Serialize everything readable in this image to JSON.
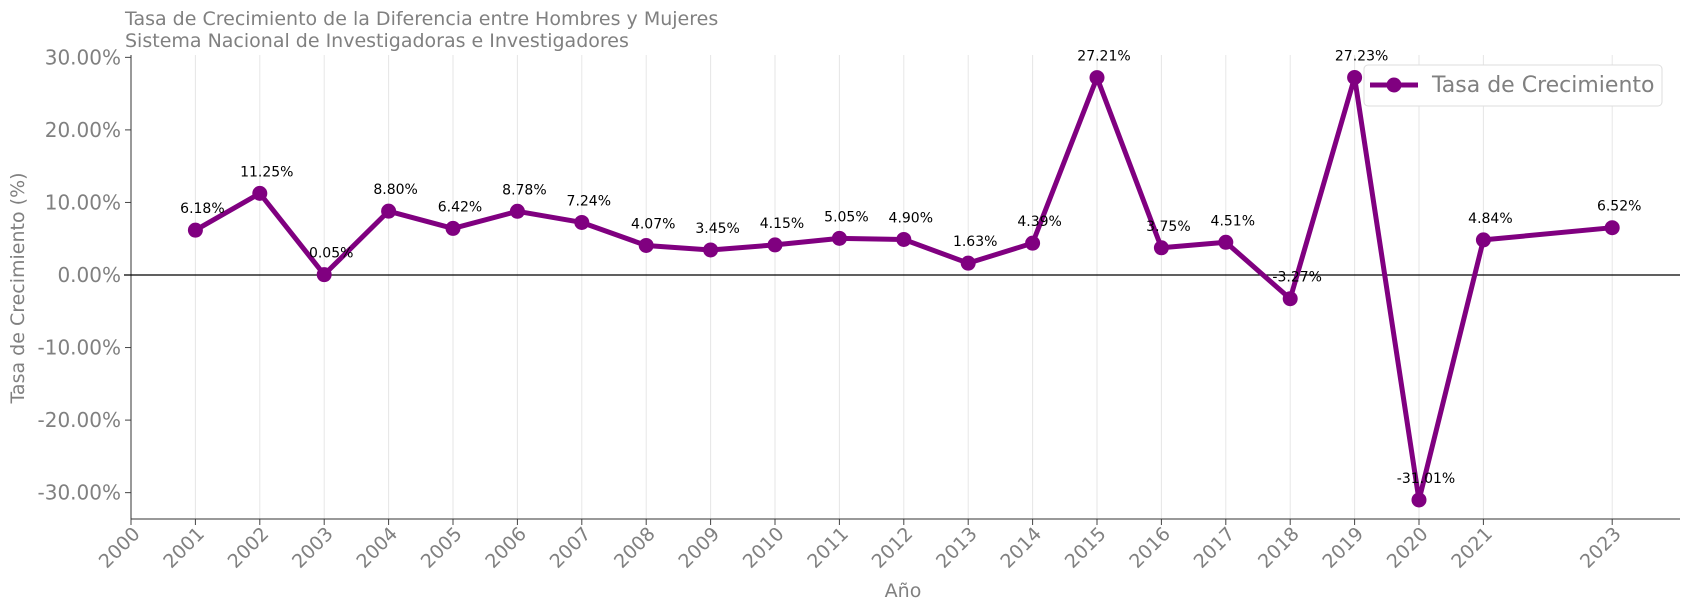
{
  "chart_data": {
    "type": "line",
    "title": "Tasa de Crecimiento de la Diferencia entre Hombres y Mujeres",
    "subtitle": "Sistema Nacional de Investigadoras e Investigadores",
    "xlabel": "Año",
    "ylabel": "Tasa de Crecimiento (%)",
    "xlim": [
      2000,
      2023
    ],
    "ylim": [
      -34,
      31
    ],
    "x_tick_labels": [
      "2000",
      "2001",
      "2002",
      "2003",
      "2004",
      "2005",
      "2006",
      "2007",
      "2008",
      "2009",
      "2010",
      "2011",
      "2012",
      "2013",
      "2014",
      "2015",
      "2016",
      "2017",
      "2018",
      "2019",
      "2020",
      "2021",
      "2023"
    ],
    "x_tick_values": [
      2000,
      2001,
      2002,
      2003,
      2004,
      2005,
      2006,
      2007,
      2008,
      2009,
      2010,
      2011,
      2012,
      2013,
      2014,
      2015,
      2016,
      2017,
      2018,
      2019,
      2020,
      2021,
      2023
    ],
    "y_tick_values": [
      30,
      20,
      10,
      0,
      -10,
      -20,
      -30
    ],
    "y_tick_labels": [
      "30.00%",
      "20.00%",
      "10.00%",
      "0.00%",
      "-10.00%",
      "-20.00%",
      "-30.00%"
    ],
    "legend": {
      "position": "top-right",
      "label": "Tasa de Crecimiento"
    },
    "color": "#800080",
    "series": [
      {
        "name": "Tasa de Crecimiento",
        "x": [
          2001,
          2002,
          2003,
          2004,
          2005,
          2006,
          2007,
          2008,
          2009,
          2010,
          2011,
          2012,
          2013,
          2014,
          2015,
          2016,
          2017,
          2018,
          2019,
          2020,
          2021,
          2023
        ],
        "values": [
          6.18,
          11.25,
          0.05,
          8.8,
          6.42,
          8.78,
          7.24,
          4.07,
          3.45,
          4.15,
          5.05,
          4.9,
          1.63,
          4.39,
          27.21,
          3.75,
          4.51,
          -3.27,
          27.23,
          -31.01,
          4.84,
          6.52
        ],
        "labels": [
          "6.18%",
          "11.25%",
          "0.05%",
          "8.80%",
          "6.42%",
          "8.78%",
          "7.24%",
          "4.07%",
          "3.45%",
          "4.15%",
          "5.05%",
          "4.90%",
          "1.63%",
          "4.39%",
          "27.21%",
          "3.75%",
          "4.51%",
          "-3.27%",
          "27.23%",
          "-31.01%",
          "4.84%",
          "6.52%"
        ]
      }
    ]
  }
}
